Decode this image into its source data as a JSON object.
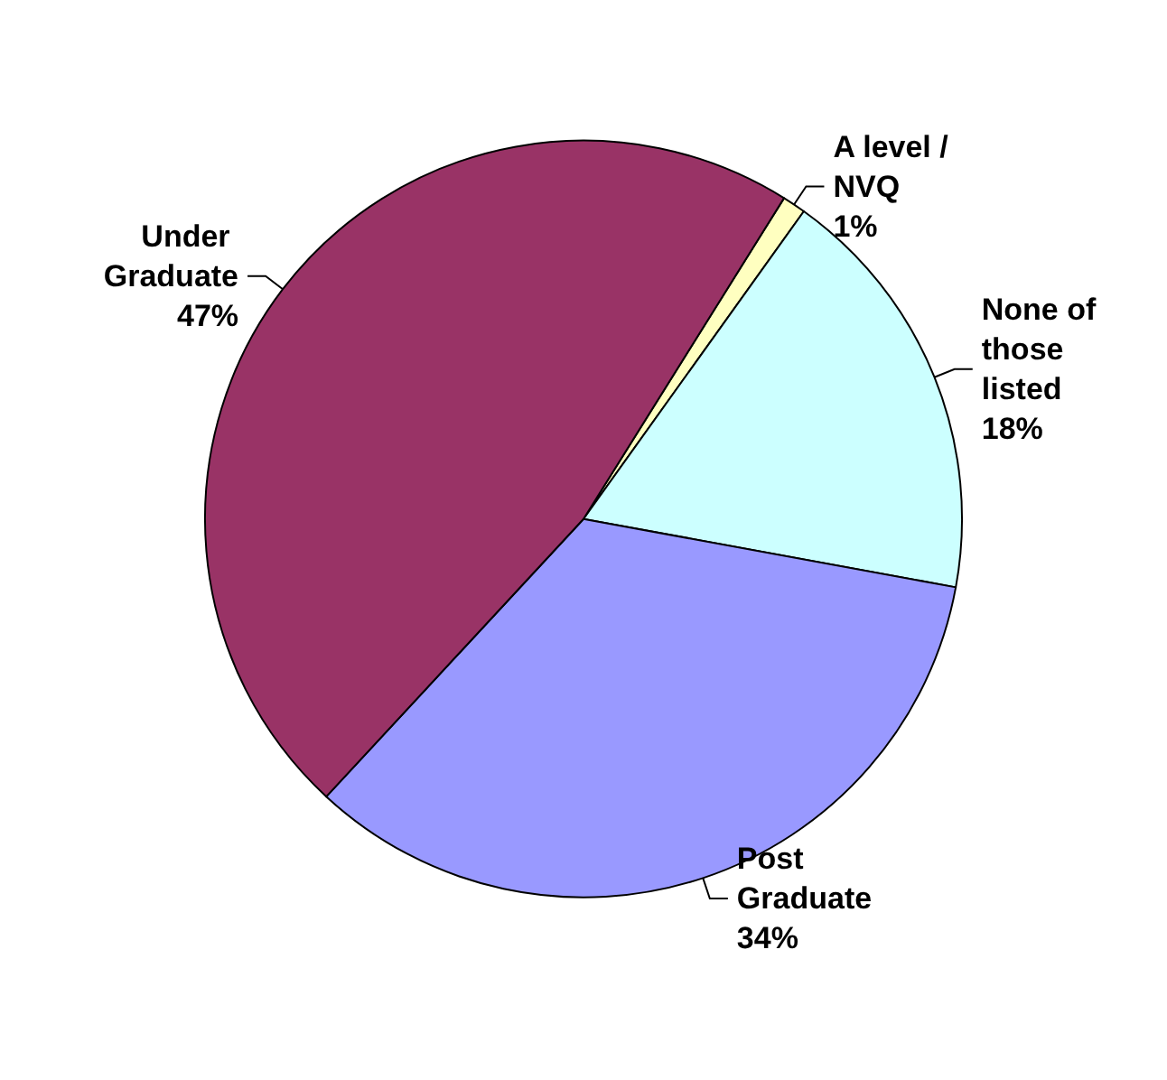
{
  "chart_data": {
    "type": "pie",
    "categories": [
      "A level / NVQ",
      "None of those listed",
      "Post Graduate",
      "Under Graduate"
    ],
    "values": [
      1,
      18,
      34,
      47
    ],
    "colors": [
      "#ffffc0",
      "#ccffff",
      "#9999ff",
      "#993366"
    ],
    "value_labels": [
      "1%",
      "18%",
      "34%",
      "47%"
    ],
    "legend": false
  }
}
